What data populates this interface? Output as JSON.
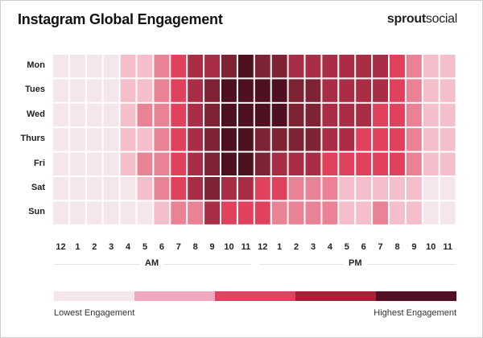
{
  "chart_data": {
    "type": "heatmap",
    "title": "Instagram Global Engagement",
    "brand": "sproutsocial",
    "rows": [
      "Mon",
      "Tues",
      "Wed",
      "Thurs",
      "Fri",
      "Sat",
      "Sun"
    ],
    "columns": [
      "12",
      "1",
      "2",
      "3",
      "4",
      "5",
      "6",
      "7",
      "8",
      "9",
      "10",
      "11",
      "12",
      "1",
      "2",
      "3",
      "4",
      "5",
      "6",
      "7",
      "8",
      "9",
      "10",
      "11"
    ],
    "column_groups": [
      {
        "label": "AM"
      },
      {
        "label": "PM"
      }
    ],
    "scale_colors": [
      "#f5e6eb",
      "#f4bfca",
      "#ea8296",
      "#e0425e",
      "#a92d45",
      "#7d2334",
      "#4f111f"
    ],
    "values": [
      [
        1,
        1,
        1,
        1,
        2,
        2,
        3,
        4,
        5,
        5,
        6,
        7,
        6,
        6,
        5,
        5,
        5,
        5,
        5,
        5,
        4,
        3,
        2,
        2
      ],
      [
        1,
        1,
        1,
        1,
        2,
        2,
        3,
        4,
        5,
        6,
        7,
        7,
        7,
        7,
        6,
        6,
        5,
        5,
        5,
        5,
        4,
        3,
        2,
        2
      ],
      [
        1,
        1,
        1,
        1,
        2,
        3,
        3,
        4,
        5,
        6,
        7,
        7,
        7,
        7,
        6,
        6,
        5,
        5,
        5,
        4,
        4,
        3,
        2,
        2
      ],
      [
        1,
        1,
        1,
        1,
        2,
        2,
        3,
        4,
        5,
        6,
        7,
        7,
        6,
        6,
        6,
        6,
        5,
        5,
        4,
        4,
        4,
        3,
        2,
        2
      ],
      [
        1,
        1,
        1,
        1,
        2,
        3,
        3,
        4,
        5,
        6,
        7,
        7,
        6,
        5,
        5,
        5,
        4,
        4,
        4,
        4,
        4,
        3,
        2,
        2
      ],
      [
        1,
        1,
        1,
        1,
        1,
        2,
        3,
        4,
        5,
        6,
        5,
        5,
        4,
        4,
        3,
        3,
        3,
        2,
        2,
        2,
        2,
        2,
        1,
        1
      ],
      [
        1,
        1,
        1,
        1,
        1,
        1,
        2,
        3,
        3,
        5,
        4,
        4,
        4,
        3,
        3,
        3,
        3,
        2,
        2,
        3,
        2,
        2,
        1,
        1
      ]
    ],
    "legend": {
      "colors": [
        "#f5e6eb",
        "#f0aabf",
        "#e24261",
        "#ad1f39",
        "#521023"
      ],
      "low_label": "Lowest Engagement",
      "high_label": "Highest Engagement"
    }
  }
}
